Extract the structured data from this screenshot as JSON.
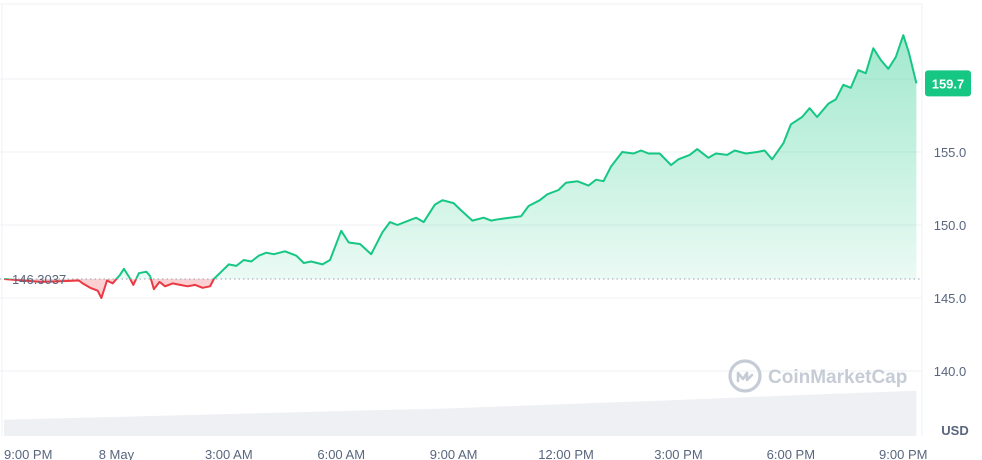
{
  "chart_data": {
    "type": "area",
    "currency_label": "USD",
    "reference_value": 146.3037,
    "reference_label": "146.3037",
    "last_price_label": "159.7",
    "watermark": "CoinMarketCap",
    "y_ticks": [
      "140.0",
      "145.0",
      "150.0",
      "155.0"
    ],
    "y_tick_values": [
      140,
      145,
      150,
      155
    ],
    "ylim": [
      137,
      163
    ],
    "x_ticks": [
      "9:00 PM",
      "8 May",
      "3:00 AM",
      "6:00 AM",
      "9:00 AM",
      "12:00 PM",
      "3:00 PM",
      "6:00 PM",
      "9:00 PM"
    ],
    "x_tick_hours": [
      0,
      3,
      6,
      9,
      12,
      15,
      18,
      21,
      24
    ],
    "xlim": [
      0,
      24.5
    ],
    "grid": true,
    "colors": {
      "up": "#16c784",
      "down": "#ea3943",
      "up_fill": "#16c784",
      "grid": "#eff2f5",
      "volume": "#eef0f3",
      "label": "#58667e"
    },
    "series": [
      {
        "values_x": [
          0,
          0.5,
          1,
          1.5,
          2,
          2.1,
          2.3,
          2.5,
          2.6,
          2.75,
          2.9,
          3.1,
          3.2,
          3.35,
          3.45,
          3.6,
          3.8,
          3.9,
          4.0,
          4.15,
          4.3,
          4.5,
          4.7,
          4.9,
          5.1,
          5.3,
          5.5,
          5.6,
          5.8,
          6.0,
          6.2,
          6.4,
          6.6,
          6.8,
          7.0,
          7.2,
          7.5,
          7.8,
          8.0,
          8.2,
          8.5,
          8.7,
          9.0,
          9.2,
          9.5,
          9.8,
          10.1,
          10.3,
          10.5,
          10.8,
          11.0,
          11.2,
          11.5,
          11.7,
          12.0,
          12.2,
          12.5,
          12.8,
          13.0,
          13.2,
          13.5,
          13.8,
          14.0,
          14.3,
          14.5,
          14.8,
          15.0,
          15.3,
          15.6,
          15.8,
          16.0,
          16.2,
          16.5,
          16.8,
          17.0,
          17.2,
          17.5,
          17.8,
          18.0,
          18.3,
          18.5,
          18.8,
          19.0,
          19.3,
          19.5,
          19.8,
          20.1,
          20.3,
          20.5,
          20.8,
          21.0,
          21.3,
          21.5,
          21.7,
          22.0,
          22.2,
          22.4,
          22.6,
          22.8,
          23.0,
          23.2,
          23.4,
          23.6,
          23.8,
          24.0,
          24.15,
          24.35
        ],
        "values_y": [
          146.3,
          146.2,
          146.1,
          146.15,
          146.2,
          146.0,
          145.7,
          145.5,
          145.0,
          146.2,
          146.0,
          146.6,
          147.0,
          146.4,
          145.9,
          146.7,
          146.8,
          146.5,
          145.6,
          146.1,
          145.8,
          146.0,
          145.9,
          145.8,
          145.9,
          145.7,
          145.8,
          146.3,
          146.8,
          147.3,
          147.2,
          147.6,
          147.5,
          147.9,
          148.1,
          148.0,
          148.2,
          147.9,
          147.4,
          147.5,
          147.3,
          147.6,
          149.6,
          148.8,
          148.7,
          148.0,
          149.5,
          150.2,
          150.0,
          150.3,
          150.5,
          150.2,
          151.4,
          151.7,
          151.5,
          151.0,
          150.3,
          150.5,
          150.3,
          150.4,
          150.5,
          150.6,
          151.3,
          151.7,
          152.1,
          152.4,
          152.9,
          153.0,
          152.7,
          153.1,
          153.0,
          154.0,
          155.0,
          154.9,
          155.1,
          154.9,
          154.9,
          154.1,
          154.5,
          154.8,
          155.2,
          154.6,
          154.9,
          154.8,
          155.1,
          154.9,
          155.0,
          155.1,
          154.5,
          155.6,
          156.9,
          157.4,
          158.0,
          157.4,
          158.3,
          158.6,
          159.6,
          159.4,
          160.6,
          160.4,
          162.1,
          161.3,
          160.7,
          161.5,
          163.0,
          161.8,
          159.7
        ]
      }
    ],
    "volume": {
      "values_x": [
        0,
        3,
        6,
        9,
        12,
        15,
        18,
        21,
        24.35
      ],
      "values_rel": [
        0.28,
        0.33,
        0.38,
        0.43,
        0.48,
        0.55,
        0.62,
        0.7,
        0.78
      ]
    }
  }
}
